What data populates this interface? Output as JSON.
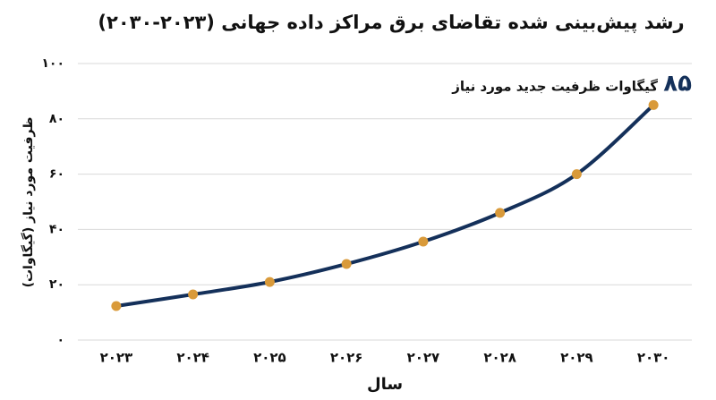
{
  "chart_data": {
    "type": "line",
    "title": "رشد پیش‌بینی شده تقاضای برق مراکز داده جهانی (۲۰۲۳-۲۰۳۰)",
    "x_label": "سال",
    "y_label": "ظرفیت مورد نیاز (گیگاوات)",
    "annotation": {
      "value": "۸۵",
      "text": "گیگاوات ظرفیت جدید مورد نیاز"
    },
    "categories": [
      "۲۰۲۳",
      "۲۰۲۴",
      "۲۰۲۵",
      "۲۰۲۶",
      "۲۰۲۷",
      "۲۰۲۸",
      "۲۰۲۹",
      "۲۰۳۰"
    ],
    "values": [
      12.3,
      16.5,
      21,
      27.5,
      35.6,
      46,
      60,
      85
    ],
    "color": "#14305a",
    "marker_color": "#d99a3a",
    "ylim": [
      0,
      100
    ],
    "yticks": [
      {
        "value": 0,
        "label": "۰"
      },
      {
        "value": 20,
        "label": "۲۰"
      },
      {
        "value": 40,
        "label": "۴۰"
      },
      {
        "value": 60,
        "label": "۶۰"
      },
      {
        "value": 80,
        "label": "۸۰"
      },
      {
        "value": 100,
        "label": "۱۰۰"
      }
    ],
    "grid": true
  }
}
